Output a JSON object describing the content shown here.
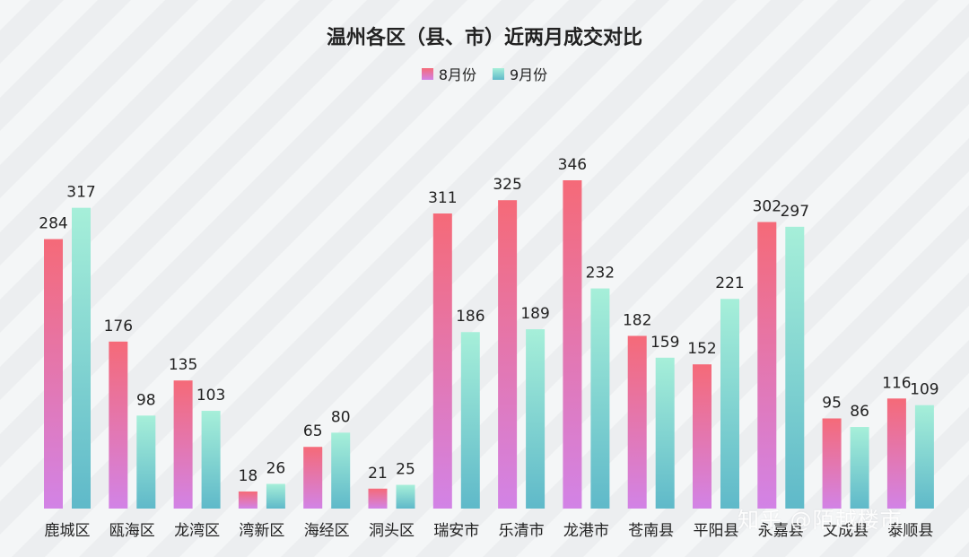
{
  "chart_data": {
    "type": "bar",
    "title": "温州各区（县、市）近两月成交对比",
    "categories": [
      "鹿城区",
      "瓯海区",
      "龙湾区",
      "湾新区",
      "海经区",
      "洞头区",
      "瑞安市",
      "乐清市",
      "龙港市",
      "苍南县",
      "平阳县",
      "永嘉县",
      "文成县",
      "泰顺县"
    ],
    "series": [
      {
        "name": "8月份",
        "values": [
          284,
          176,
          135,
          18,
          65,
          21,
          311,
          325,
          346,
          182,
          152,
          302,
          95,
          116
        ]
      },
      {
        "name": "9月份",
        "values": [
          317,
          98,
          103,
          26,
          80,
          25,
          186,
          189,
          232,
          159,
          221,
          297,
          86,
          109
        ]
      }
    ],
    "ylim": [
      0,
      346
    ],
    "grid": false,
    "legend_position": "top-center",
    "colors": {
      "aug_top": "#f56a78",
      "aug_bottom": "#d283e6",
      "sep_top": "#a6efd9",
      "sep_bottom": "#5fb9c9"
    }
  },
  "watermark": "知乎 @陌越楼市"
}
